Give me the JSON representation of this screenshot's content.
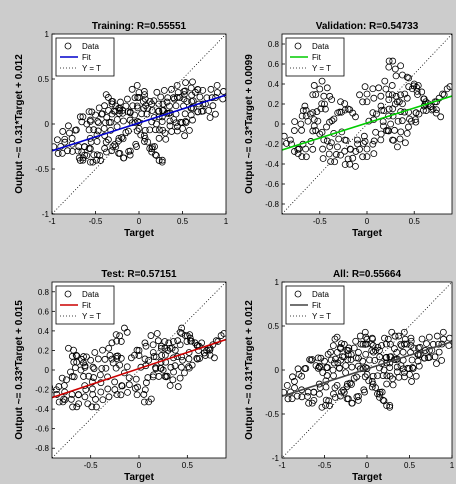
{
  "chart_data": [
    {
      "type": "scatter",
      "title": "Training: R=0.55551",
      "xlabel": "Target",
      "ylabel": "Output ~= 0.31*Target + 0.012",
      "xlim": [
        -1,
        1
      ],
      "ylim": [
        -1,
        1
      ],
      "xticks": [
        "-1",
        "-0.5",
        "0",
        "0.5",
        "1"
      ],
      "yticks": [
        "-1",
        "-0.5",
        "0",
        "0.5",
        "1"
      ],
      "xtick_values": [
        -1,
        -0.5,
        0,
        0.5,
        1
      ],
      "ytick_values": [
        -1,
        -0.5,
        0,
        0.5,
        1
      ],
      "fit": {
        "slope": 0.31,
        "intercept": 0.012,
        "color": "#0000cc"
      },
      "legend": [
        "Data",
        "Fit",
        "Y = T"
      ],
      "legend_position": "top-left",
      "points": [
        [
          -0.9,
          -0.25
        ],
        [
          -0.8,
          -0.1
        ],
        [
          -0.7,
          -0.3
        ],
        [
          -0.6,
          0.0
        ],
        [
          -0.55,
          -0.2
        ],
        [
          -0.5,
          0.1
        ],
        [
          -0.45,
          -0.35
        ],
        [
          -0.4,
          -0.05
        ],
        [
          -0.35,
          0.15
        ],
        [
          -0.3,
          -0.25
        ],
        [
          -0.25,
          0.05
        ],
        [
          -0.2,
          -0.15
        ],
        [
          -0.15,
          0.2
        ],
        [
          -0.1,
          -0.3
        ],
        [
          -0.05,
          0.1
        ],
        [
          0.0,
          -0.05
        ],
        [
          0.05,
          0.25
        ],
        [
          0.1,
          -0.2
        ],
        [
          0.15,
          0.15
        ],
        [
          0.2,
          0.0
        ],
        [
          0.25,
          0.3
        ],
        [
          0.3,
          -0.1
        ],
        [
          0.35,
          0.2
        ],
        [
          0.4,
          0.05
        ],
        [
          0.45,
          0.35
        ],
        [
          0.5,
          -0.05
        ],
        [
          0.55,
          0.25
        ],
        [
          0.6,
          0.1
        ],
        [
          0.7,
          0.3
        ],
        [
          0.8,
          0.15
        ],
        [
          0.9,
          0.35
        ],
        [
          0.0,
          0.35
        ],
        [
          -0.3,
          0.25
        ],
        [
          0.2,
          -0.35
        ],
        [
          -0.6,
          -0.35
        ],
        [
          0.6,
          0.4
        ]
      ]
    },
    {
      "type": "scatter",
      "title": "Validation: R=0.54733",
      "xlabel": "Target",
      "ylabel": "Output ~= 0.3*Target + 0.0099",
      "xlim": [
        -0.9,
        0.9
      ],
      "ylim": [
        -0.9,
        0.9
      ],
      "xticks": [
        "-0.5",
        "0",
        "0.5"
      ],
      "yticks": [
        "-0.8",
        "-0.6",
        "-0.4",
        "-0.2",
        "0",
        "0.2",
        "0.4",
        "0.6",
        "0.8"
      ],
      "xtick_values": [
        -0.5,
        0,
        0.5
      ],
      "ytick_values": [
        -0.8,
        -0.6,
        -0.4,
        -0.2,
        0,
        0.2,
        0.4,
        0.6,
        0.8
      ],
      "fit": {
        "slope": 0.3,
        "intercept": 0.0099,
        "color": "#00cc00"
      },
      "legend": [
        "Data",
        "Fit",
        "Y = T"
      ],
      "legend_position": "top-left",
      "points": [
        [
          -0.8,
          -0.2
        ],
        [
          -0.7,
          0.0
        ],
        [
          -0.65,
          -0.25
        ],
        [
          -0.6,
          0.1
        ],
        [
          -0.5,
          -0.1
        ],
        [
          -0.45,
          0.2
        ],
        [
          -0.4,
          -0.3
        ],
        [
          -0.35,
          0.05
        ],
        [
          -0.3,
          -0.15
        ],
        [
          -0.2,
          0.15
        ],
        [
          -0.1,
          -0.2
        ],
        [
          0.0,
          0.3
        ],
        [
          0.0,
          -0.25
        ],
        [
          0.1,
          0.1
        ],
        [
          0.15,
          -0.1
        ],
        [
          0.2,
          0.35
        ],
        [
          0.25,
          0.0
        ],
        [
          0.3,
          0.2
        ],
        [
          0.35,
          -0.15
        ],
        [
          0.4,
          0.3
        ],
        [
          0.45,
          0.05
        ],
        [
          0.5,
          0.4
        ],
        [
          0.55,
          0.1
        ],
        [
          0.6,
          0.25
        ],
        [
          0.7,
          0.15
        ],
        [
          0.8,
          0.3
        ],
        [
          -0.5,
          0.35
        ],
        [
          0.3,
          0.55
        ],
        [
          -0.2,
          -0.35
        ]
      ]
    },
    {
      "type": "scatter",
      "title": "Test: R=0.57151",
      "xlabel": "Target",
      "ylabel": "Output ~= 0.33*Target + 0.015",
      "xlim": [
        -0.9,
        0.9
      ],
      "ylim": [
        -0.9,
        0.9
      ],
      "xticks": [
        "-0.5",
        "0",
        "0.5"
      ],
      "yticks": [
        "-0.8",
        "-0.6",
        "-0.4",
        "-0.2",
        "0",
        "0.2",
        "0.4",
        "0.6",
        "0.8"
      ],
      "xtick_values": [
        -0.5,
        0,
        0.5
      ],
      "ytick_values": [
        -0.8,
        -0.6,
        -0.4,
        -0.2,
        0,
        0.2,
        0.4,
        0.6,
        0.8
      ],
      "fit": {
        "slope": 0.33,
        "intercept": 0.015,
        "color": "#cc0000"
      },
      "legend": [
        "Data",
        "Fit",
        "Y = T"
      ],
      "legend_position": "top-left",
      "points": [
        [
          -0.85,
          -0.25
        ],
        [
          -0.75,
          -0.1
        ],
        [
          -0.7,
          -0.3
        ],
        [
          -0.6,
          0.0
        ],
        [
          -0.55,
          -0.2
        ],
        [
          -0.5,
          0.1
        ],
        [
          -0.45,
          -0.3
        ],
        [
          -0.4,
          -0.05
        ],
        [
          -0.3,
          0.15
        ],
        [
          -0.25,
          -0.2
        ],
        [
          -0.2,
          0.05
        ],
        [
          -0.1,
          -0.15
        ],
        [
          0.0,
          0.2
        ],
        [
          0.05,
          -0.25
        ],
        [
          0.1,
          0.1
        ],
        [
          0.15,
          -0.05
        ],
        [
          0.2,
          0.3
        ],
        [
          0.25,
          0.0
        ],
        [
          0.3,
          0.2
        ],
        [
          0.35,
          -0.1
        ],
        [
          0.4,
          0.3
        ],
        [
          0.45,
          0.1
        ],
        [
          0.5,
          0.35
        ],
        [
          0.55,
          0.05
        ],
        [
          0.6,
          0.25
        ],
        [
          0.7,
          0.2
        ],
        [
          0.8,
          0.3
        ],
        [
          -0.65,
          0.15
        ],
        [
          -0.2,
          0.35
        ]
      ]
    },
    {
      "type": "scatter",
      "title": "All: R=0.55664",
      "xlabel": "Target",
      "ylabel": "Output ~= 0.31*Target + 0.012",
      "xlim": [
        -1,
        1
      ],
      "ylim": [
        -1,
        1
      ],
      "xticks": [
        "-1",
        "-0.5",
        "0",
        "0.5",
        "1"
      ],
      "yticks": [
        "-1",
        "-0.5",
        "0",
        "0.5",
        "1"
      ],
      "xtick_values": [
        -1,
        -0.5,
        0,
        0.5,
        1
      ],
      "ytick_values": [
        -1,
        -0.5,
        0,
        0.5,
        1
      ],
      "fit": {
        "slope": 0.31,
        "intercept": 0.012,
        "color": "#444444"
      },
      "legend": [
        "Data",
        "Fit",
        "Y = T"
      ],
      "legend_position": "top-left",
      "points": [
        [
          -0.9,
          -0.25
        ],
        [
          -0.8,
          -0.05
        ],
        [
          -0.7,
          -0.3
        ],
        [
          -0.6,
          0.05
        ],
        [
          -0.55,
          -0.2
        ],
        [
          -0.5,
          0.1
        ],
        [
          -0.45,
          -0.35
        ],
        [
          -0.4,
          0.0
        ],
        [
          -0.35,
          0.2
        ],
        [
          -0.3,
          -0.25
        ],
        [
          -0.25,
          0.05
        ],
        [
          -0.2,
          -0.15
        ],
        [
          -0.15,
          0.25
        ],
        [
          -0.1,
          -0.3
        ],
        [
          -0.05,
          0.1
        ],
        [
          0.0,
          -0.05
        ],
        [
          0.05,
          0.3
        ],
        [
          0.1,
          -0.2
        ],
        [
          0.15,
          0.15
        ],
        [
          0.2,
          0.0
        ],
        [
          0.25,
          0.35
        ],
        [
          0.3,
          -0.1
        ],
        [
          0.35,
          0.2
        ],
        [
          0.4,
          0.05
        ],
        [
          0.45,
          0.35
        ],
        [
          0.5,
          -0.05
        ],
        [
          0.55,
          0.25
        ],
        [
          0.6,
          0.1
        ],
        [
          0.7,
          0.3
        ],
        [
          0.8,
          0.15
        ],
        [
          0.9,
          0.35
        ],
        [
          0.0,
          0.35
        ],
        [
          -0.3,
          0.3
        ],
        [
          0.2,
          -0.35
        ]
      ]
    }
  ]
}
